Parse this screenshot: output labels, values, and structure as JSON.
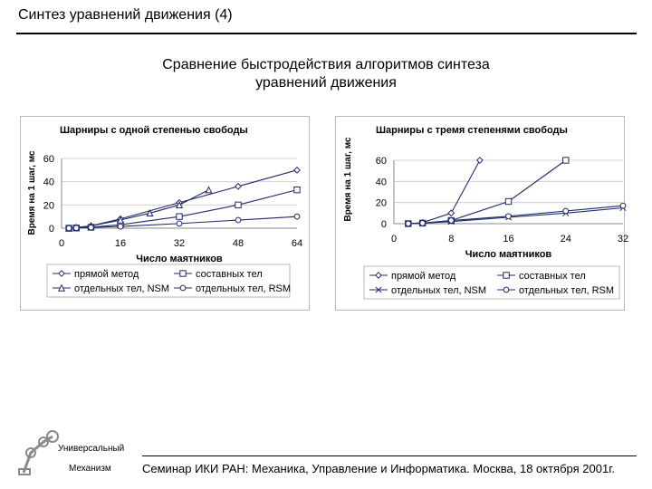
{
  "slide": {
    "title": "Синтез уравнений движения (4)",
    "subtitle": "Сравнение быстродействия алгоритмов синтеза уравнений движения",
    "footer": "Семинар ИКИ РАН: Механика, Управление и Информатика. Москва, 18 октября 2001г.",
    "logo_line1": "Универсальный",
    "logo_line2": "Механизм"
  },
  "chart_data": [
    {
      "type": "line",
      "title": "Шарниры с одной степенью свободы",
      "xlabel": "Число маятников",
      "ylabel": "Время на 1 шаг, мс",
      "xlim": [
        0,
        64
      ],
      "ylim": [
        0,
        60
      ],
      "xticks": [
        0,
        16,
        32,
        48,
        64
      ],
      "yticks": [
        0,
        20,
        40,
        60
      ],
      "grid": true,
      "legend_position": "bottom",
      "series": [
        {
          "name": "прямой метод",
          "marker": "diamond",
          "x": [
            2,
            4,
            8,
            16,
            32,
            48,
            64
          ],
          "y": [
            0,
            0.5,
            2,
            8,
            22,
            36,
            50
          ]
        },
        {
          "name": "составных тел",
          "marker": "square",
          "x": [
            2,
            4,
            8,
            16,
            32,
            48,
            64
          ],
          "y": [
            0,
            0.2,
            0.8,
            3,
            10,
            20,
            33
          ]
        },
        {
          "name": "отдельных тел, NSM",
          "marker": "triangle",
          "x": [
            2,
            4,
            8,
            16,
            24,
            32,
            40
          ],
          "y": [
            0,
            0.5,
            2,
            7,
            13,
            20,
            33
          ]
        },
        {
          "name": "отдельных тел, RSM",
          "marker": "circle",
          "x": [
            2,
            4,
            8,
            16,
            32,
            48,
            64
          ],
          "y": [
            0,
            0.2,
            0.6,
            1.5,
            4,
            7,
            10
          ]
        }
      ]
    },
    {
      "type": "line",
      "title": "Шарниры с тремя степенями свободы",
      "xlabel": "Число маятников",
      "ylabel": "Время на 1 шаг, мс",
      "xlim": [
        0,
        32
      ],
      "ylim": [
        0,
        60
      ],
      "xticks": [
        0,
        8,
        16,
        24,
        32
      ],
      "yticks": [
        0,
        20,
        40,
        60
      ],
      "grid": true,
      "legend_position": "bottom",
      "series": [
        {
          "name": "прямой метод",
          "marker": "diamond",
          "x": [
            2,
            4,
            8,
            12
          ],
          "y": [
            0,
            1,
            10,
            60
          ]
        },
        {
          "name": "составных тел",
          "marker": "square",
          "x": [
            2,
            4,
            8,
            16,
            24
          ],
          "y": [
            0,
            0.5,
            3,
            21,
            60
          ]
        },
        {
          "name": "отдельных тел, NSM",
          "marker": "cross",
          "x": [
            2,
            4,
            8,
            16,
            24,
            32
          ],
          "y": [
            0,
            0.5,
            2,
            6,
            10,
            15
          ]
        },
        {
          "name": "отдельных тел, RSM",
          "marker": "circle",
          "x": [
            2,
            4,
            8,
            16,
            24,
            32
          ],
          "y": [
            0,
            0.5,
            3,
            7,
            12,
            17
          ]
        }
      ]
    }
  ]
}
